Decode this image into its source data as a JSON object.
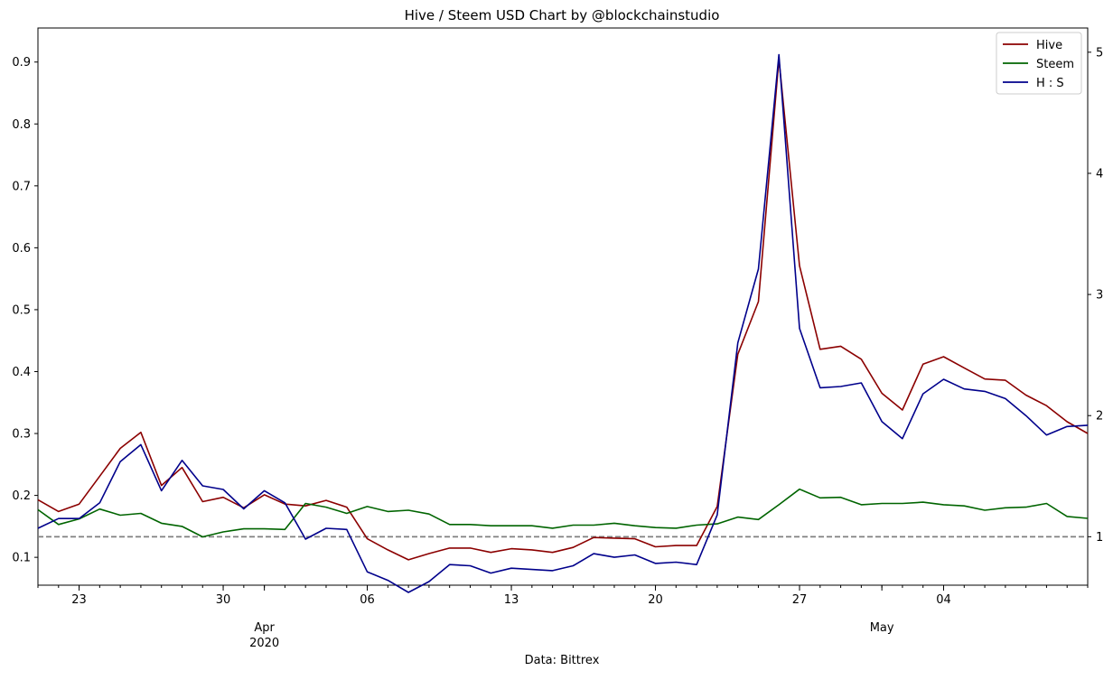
{
  "chart_data": {
    "type": "line",
    "title": "Hive / Steem USD Chart by @blockchainstudio",
    "xlabel": "Data: Bittrex",
    "ylabel": "",
    "ylabel_right": "",
    "x_range": [
      "2020-03-21",
      "2020-05-11"
    ],
    "ylim": [
      0.055,
      0.955
    ],
    "ylim_right": [
      0.6,
      5.2
    ],
    "y_ticks": [
      0.1,
      0.2,
      0.3,
      0.4,
      0.5,
      0.6,
      0.7,
      0.8,
      0.9
    ],
    "y_ticks_right": [
      1,
      2,
      3,
      4,
      5
    ],
    "x_ticks_major": [
      {
        "date": "2020-03-23",
        "label": "23",
        "sub": ""
      },
      {
        "date": "2020-03-30",
        "label": "30",
        "sub": ""
      },
      {
        "date": "2020-04-01",
        "label": "",
        "sub": "Apr",
        "sub2": "2020"
      },
      {
        "date": "2020-04-06",
        "label": "06",
        "sub": ""
      },
      {
        "date": "2020-04-13",
        "label": "13",
        "sub": ""
      },
      {
        "date": "2020-04-20",
        "label": "20",
        "sub": ""
      },
      {
        "date": "2020-04-27",
        "label": "27",
        "sub": ""
      },
      {
        "date": "2020-05-01",
        "label": "",
        "sub": "May",
        "sub2": ""
      },
      {
        "date": "2020-05-04",
        "label": "04",
        "sub": ""
      }
    ],
    "legend_position": "top-right",
    "grid": false,
    "reference_line": {
      "axis": "right",
      "value": 1,
      "style": "dashed",
      "color": "#808080"
    },
    "dates": [
      "2020-03-21",
      "2020-03-22",
      "2020-03-23",
      "2020-03-24",
      "2020-03-25",
      "2020-03-26",
      "2020-03-27",
      "2020-03-28",
      "2020-03-29",
      "2020-03-30",
      "2020-03-31",
      "2020-04-01",
      "2020-04-02",
      "2020-04-03",
      "2020-04-04",
      "2020-04-05",
      "2020-04-06",
      "2020-04-07",
      "2020-04-08",
      "2020-04-09",
      "2020-04-10",
      "2020-04-11",
      "2020-04-12",
      "2020-04-13",
      "2020-04-14",
      "2020-04-15",
      "2020-04-16",
      "2020-04-17",
      "2020-04-18",
      "2020-04-19",
      "2020-04-20",
      "2020-04-21",
      "2020-04-22",
      "2020-04-23",
      "2020-04-24",
      "2020-04-25",
      "2020-04-26",
      "2020-04-27",
      "2020-04-28",
      "2020-04-29",
      "2020-04-30",
      "2020-05-01",
      "2020-05-02",
      "2020-05-03",
      "2020-05-04",
      "2020-05-05",
      "2020-05-06",
      "2020-05-07",
      "2020-05-08",
      "2020-05-09",
      "2020-05-10",
      "2020-05-11"
    ],
    "series": [
      {
        "name": "Hive",
        "axis": "left",
        "color": "#8b0000",
        "values": [
          0.193,
          0.174,
          0.186,
          0.231,
          0.276,
          0.302,
          0.216,
          0.245,
          0.19,
          0.197,
          0.18,
          0.201,
          0.186,
          0.183,
          0.192,
          0.181,
          0.13,
          0.112,
          0.096,
          0.106,
          0.115,
          0.115,
          0.108,
          0.114,
          0.112,
          0.108,
          0.116,
          0.132,
          0.131,
          0.13,
          0.117,
          0.119,
          0.119,
          0.182,
          0.428,
          0.513,
          0.905,
          0.571,
          0.436,
          0.441,
          0.42,
          0.365,
          0.338,
          0.412,
          0.424,
          0.406,
          0.388,
          0.386,
          0.362,
          0.345,
          0.319,
          0.3
        ]
      },
      {
        "name": "Steem",
        "axis": "left",
        "color": "#006400",
        "values": [
          0.177,
          0.153,
          0.162,
          0.178,
          0.168,
          0.171,
          0.155,
          0.15,
          0.133,
          0.141,
          0.146,
          0.146,
          0.145,
          0.187,
          0.181,
          0.171,
          0.182,
          0.174,
          0.176,
          0.17,
          0.153,
          0.153,
          0.151,
          0.151,
          0.151,
          0.147,
          0.152,
          0.152,
          0.155,
          0.151,
          0.148,
          0.147,
          0.152,
          0.154,
          0.165,
          0.161,
          0.185,
          0.21,
          0.196,
          0.197,
          0.185,
          0.187,
          0.187,
          0.189,
          0.185,
          0.183,
          0.176,
          0.18,
          0.181,
          0.187,
          0.166,
          0.163
        ]
      },
      {
        "name": "H : S",
        "axis": "right",
        "color": "#00008b",
        "values": [
          1.07,
          1.15,
          1.15,
          1.28,
          1.62,
          1.76,
          1.38,
          1.63,
          1.42,
          1.39,
          1.23,
          1.38,
          1.28,
          0.98,
          1.07,
          1.06,
          0.71,
          0.64,
          0.54,
          0.63,
          0.77,
          0.76,
          0.7,
          0.74,
          0.73,
          0.72,
          0.76,
          0.86,
          0.83,
          0.85,
          0.78,
          0.79,
          0.77,
          1.18,
          2.6,
          3.21,
          4.98,
          2.72,
          2.23,
          2.24,
          2.27,
          1.95,
          1.81,
          2.18,
          2.3,
          2.22,
          2.2,
          2.14,
          2.0,
          1.84,
          1.91,
          1.92
        ]
      }
    ]
  }
}
